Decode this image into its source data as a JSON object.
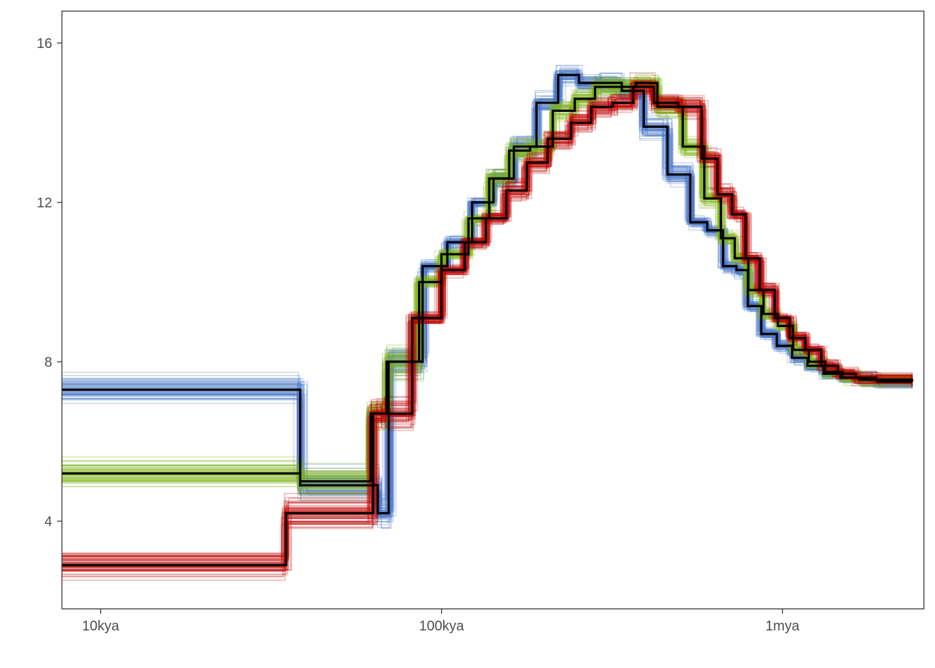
{
  "chart_data": {
    "type": "line",
    "title": "",
    "xlabel": "",
    "ylabel": "",
    "x_scale": "log10",
    "x_unit": "years ago",
    "xlim": [
      7700,
      2600000
    ],
    "ylim": [
      1.8,
      16.8
    ],
    "grid": false,
    "legend": "none",
    "x_ticks": [
      {
        "value": 10000,
        "label": "10kya"
      },
      {
        "value": 100000,
        "label": "100kya"
      },
      {
        "value": 1000000,
        "label": "1mya"
      }
    ],
    "y_ticks": [
      {
        "value": 4,
        "label": "4"
      },
      {
        "value": 8,
        "label": "8"
      },
      {
        "value": 12,
        "label": "12"
      },
      {
        "value": 16,
        "label": "16"
      }
    ],
    "bootstrap_replicates_per_population": 60,
    "series": [
      {
        "color": "#4472c4",
        "style": "step",
        "x": [
          7700,
          38500,
          65000,
          70000,
          88000,
          104000,
          123000,
          142000,
          163000,
          190000,
          220000,
          253000,
          291000,
          338000,
          392000,
          460000,
          537000,
          602000,
          670000,
          733000,
          792000,
          867000,
          963000,
          1068000,
          1185000,
          1320000,
          1480000,
          1680000,
          1900000,
          2400000
        ],
        "y": [
          7.3,
          4.9,
          4.2,
          8.0,
          10.4,
          11.0,
          12.0,
          12.6,
          13.4,
          14.5,
          15.2,
          15.0,
          15.0,
          14.8,
          13.9,
          12.7,
          11.5,
          11.3,
          10.4,
          10.3,
          9.4,
          8.7,
          8.4,
          8.1,
          7.9,
          7.7,
          7.6,
          7.55,
          7.5,
          7.5
        ]
      },
      {
        "color": "#7cb518",
        "style": "step",
        "x": [
          7700,
          38500,
          62000,
          69000,
          86000,
          100000,
          120000,
          138000,
          158000,
          182000,
          212000,
          246000,
          282000,
          322000,
          372000,
          430000,
          510000,
          590000,
          660000,
          725000,
          795000,
          880000,
          970000,
          1075000,
          1195000,
          1335000,
          1500000,
          1700000,
          1950000,
          2400000
        ],
        "y": [
          5.2,
          5.0,
          6.7,
          8.0,
          10.0,
          10.7,
          11.6,
          12.6,
          13.3,
          13.4,
          14.3,
          14.6,
          14.9,
          14.9,
          15.0,
          14.4,
          13.4,
          12.1,
          11.1,
          10.6,
          9.8,
          9.2,
          8.9,
          8.3,
          8.0,
          7.75,
          7.6,
          7.55,
          7.55,
          7.5
        ]
      },
      {
        "color": "#c00000",
        "style": "step",
        "x": [
          7700,
          35000,
          63000,
          68000,
          82000,
          100000,
          117000,
          135000,
          155000,
          178000,
          205000,
          240000,
          275000,
          318000,
          365000,
          420000,
          495000,
          580000,
          645000,
          712000,
          780000,
          858000,
          950000,
          1050000,
          1168000,
          1300000,
          1455000,
          1640000,
          1880000,
          2400000
        ],
        "y": [
          2.9,
          4.2,
          6.7,
          6.7,
          9.1,
          10.3,
          11.0,
          11.6,
          12.3,
          13.0,
          13.6,
          14.0,
          14.4,
          14.5,
          14.9,
          14.5,
          14.4,
          13.1,
          12.2,
          11.7,
          10.6,
          9.8,
          9.1,
          8.6,
          8.3,
          7.9,
          7.7,
          7.6,
          7.55,
          7.5
        ]
      }
    ]
  }
}
